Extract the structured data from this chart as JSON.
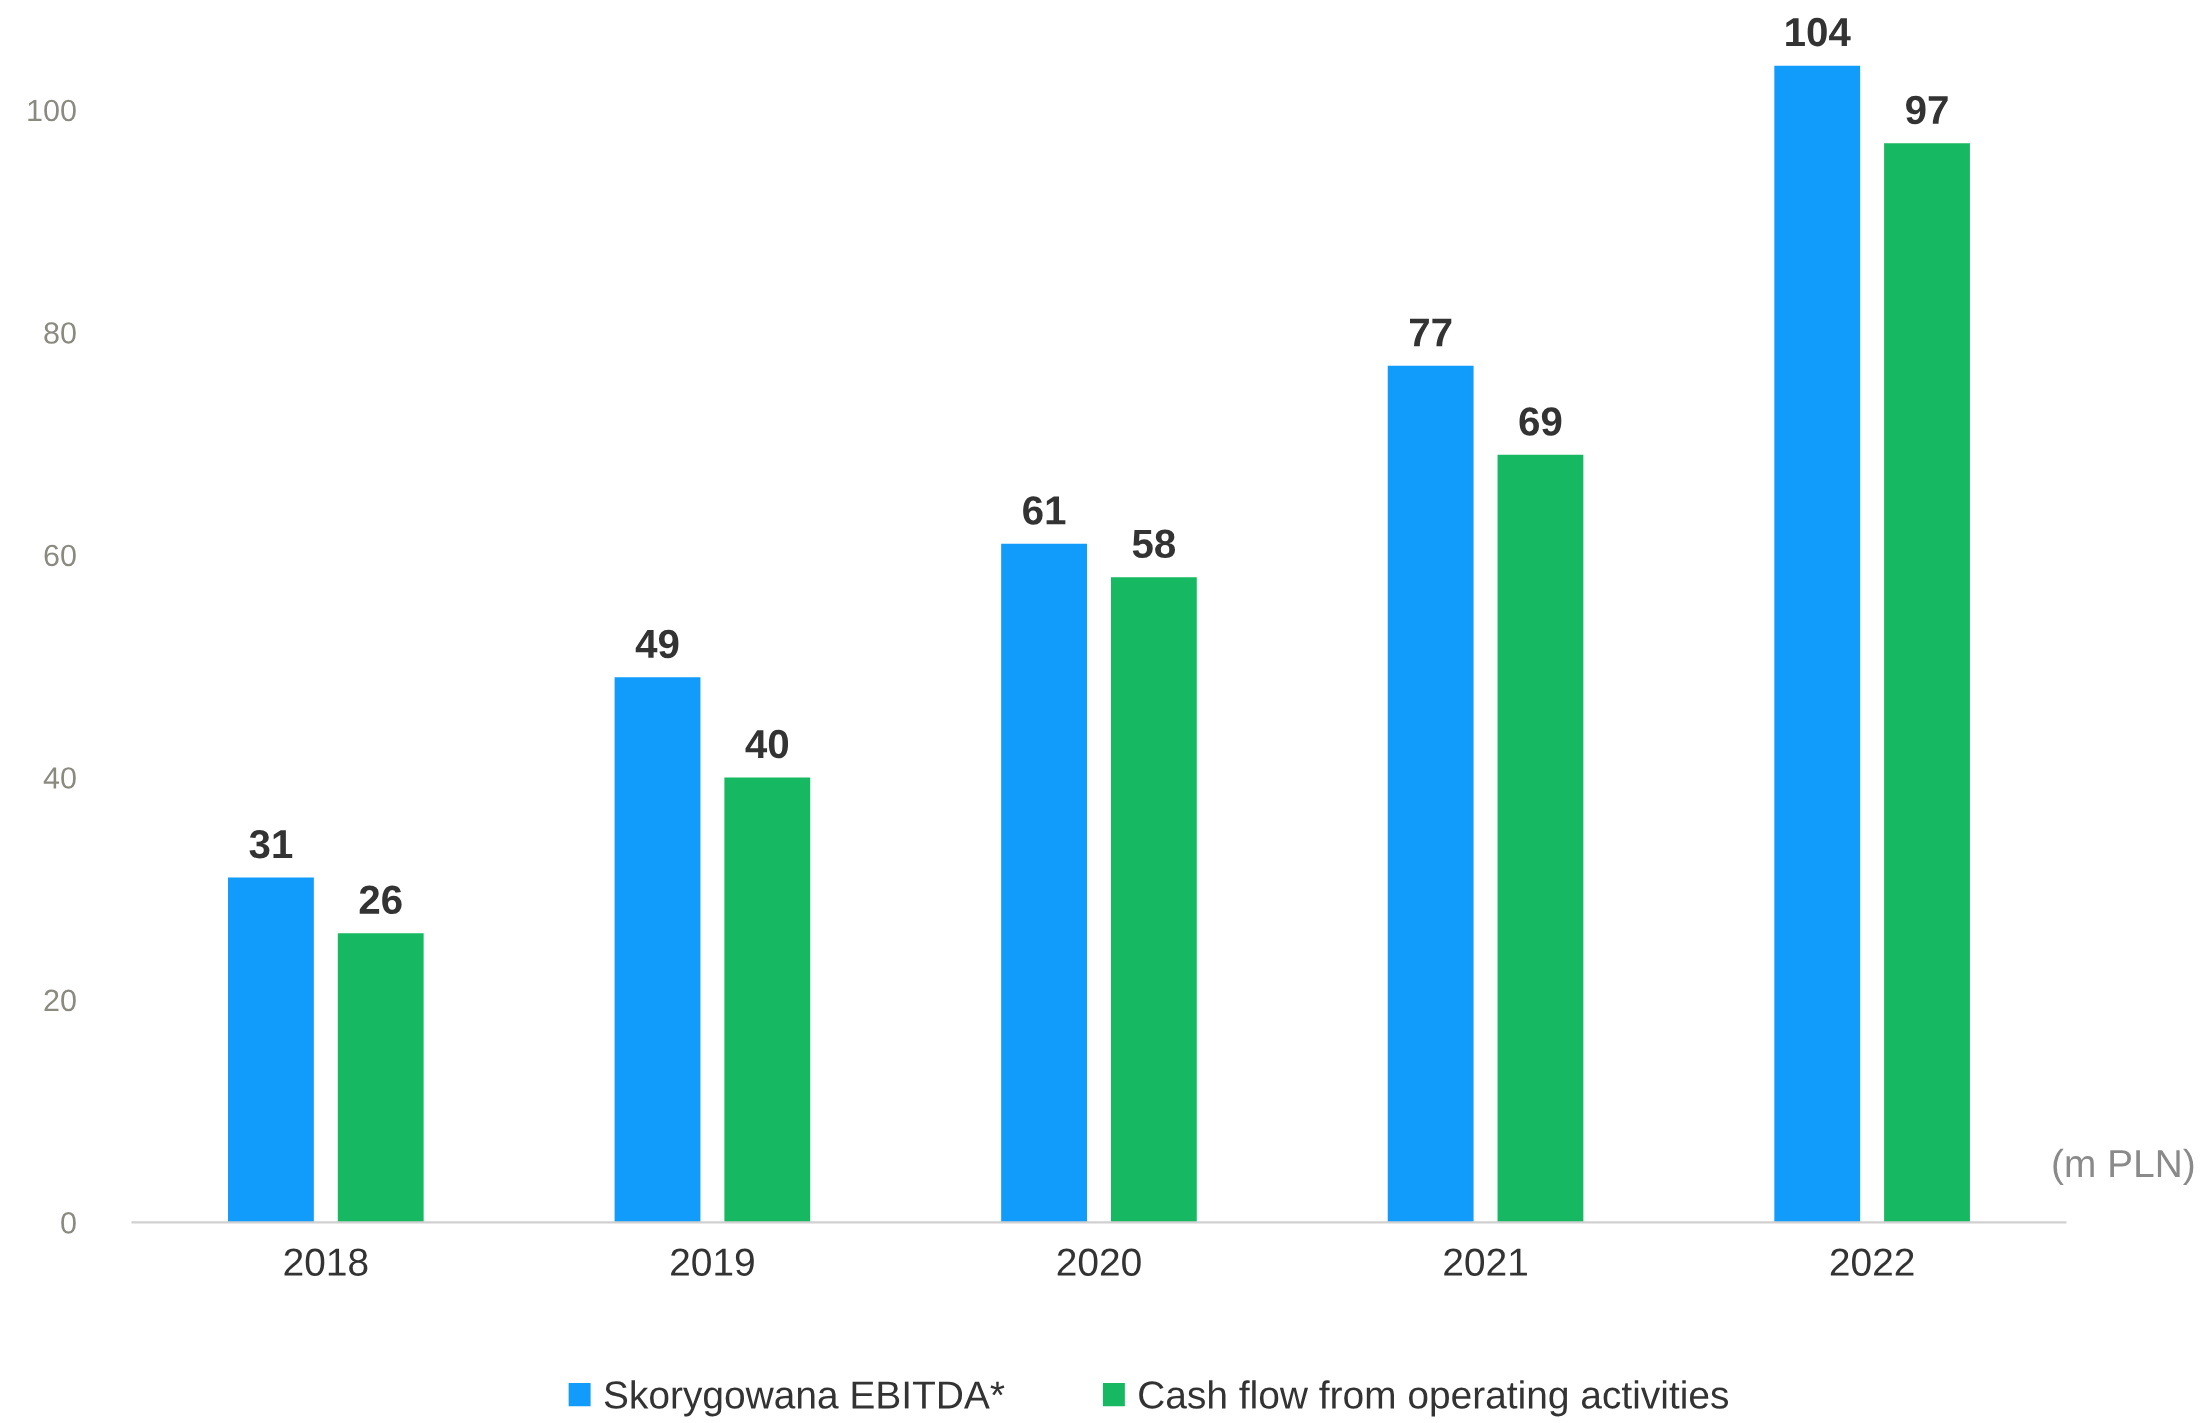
{
  "chart_data": {
    "type": "bar",
    "categories": [
      "2018",
      "2019",
      "2020",
      "2021",
      "2022"
    ],
    "series": [
      {
        "name": "Skorygowana EBITDA*",
        "color": "#119bfa",
        "values": [
          31,
          49,
          61,
          77,
          104
        ]
      },
      {
        "name": "Cash flow from operating activities",
        "color": "#16b862",
        "values": [
          26,
          40,
          58,
          69,
          97
        ]
      }
    ],
    "ylim": [
      0,
      104
    ],
    "yticks": [
      0,
      20,
      40,
      60,
      80,
      100
    ],
    "data_labels": true,
    "grid": false,
    "legend": "bottom",
    "annotations": [
      "(m PLN)"
    ]
  }
}
